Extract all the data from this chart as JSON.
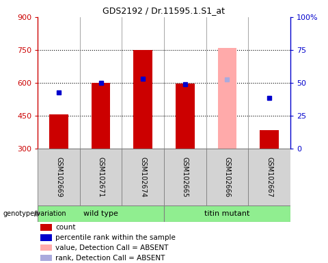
{
  "title": "GDS2192 / Dr.11595.1.S1_at",
  "samples": [
    "GSM102669",
    "GSM102671",
    "GSM102674",
    "GSM102665",
    "GSM102666",
    "GSM102667"
  ],
  "bar_values": [
    455,
    600,
    750,
    597,
    null,
    385
  ],
  "bar_color": "#cc0000",
  "absent_bar_value": 760,
  "absent_bar_index": 4,
  "absent_bar_color": "#ffaaaa",
  "rank_dots": [
    {
      "index": 0,
      "value": 555,
      "color": "#0000cc"
    },
    {
      "index": 1,
      "value": 600,
      "color": "#0000cc"
    },
    {
      "index": 2,
      "value": 618,
      "color": "#0000cc"
    },
    {
      "index": 3,
      "value": 595,
      "color": "#0000cc"
    },
    {
      "index": 4,
      "value": 615,
      "color": "#aaaadd"
    },
    {
      "index": 5,
      "value": 530,
      "color": "#0000cc"
    }
  ],
  "ylim_left": [
    300,
    900
  ],
  "ylim_right": [
    0,
    100
  ],
  "yticks_left": [
    300,
    450,
    600,
    750,
    900
  ],
  "yticks_right": [
    0,
    25,
    50,
    75,
    100
  ],
  "hlines": [
    450,
    600,
    750
  ],
  "left_axis_color": "#cc0000",
  "right_axis_color": "#0000cc",
  "bar_bottom": 300,
  "bar_width": 0.45,
  "group_info": [
    {
      "name": "wild type",
      "start": 0,
      "end": 2
    },
    {
      "name": "titin mutant",
      "start": 3,
      "end": 5
    }
  ],
  "group_color": "#90ee90",
  "legend_items": [
    {
      "label": "count",
      "color": "#cc0000"
    },
    {
      "label": "percentile rank within the sample",
      "color": "#0000cc"
    },
    {
      "label": "value, Detection Call = ABSENT",
      "color": "#ffaaaa"
    },
    {
      "label": "rank, Detection Call = ABSENT",
      "color": "#aaaadd"
    }
  ],
  "genotype_label": "genotype/variation",
  "sample_box_color": "#d3d3d3",
  "plot_bg_color": "#ffffff",
  "title_fontsize": 9,
  "tick_fontsize": 8,
  "label_fontsize": 8
}
